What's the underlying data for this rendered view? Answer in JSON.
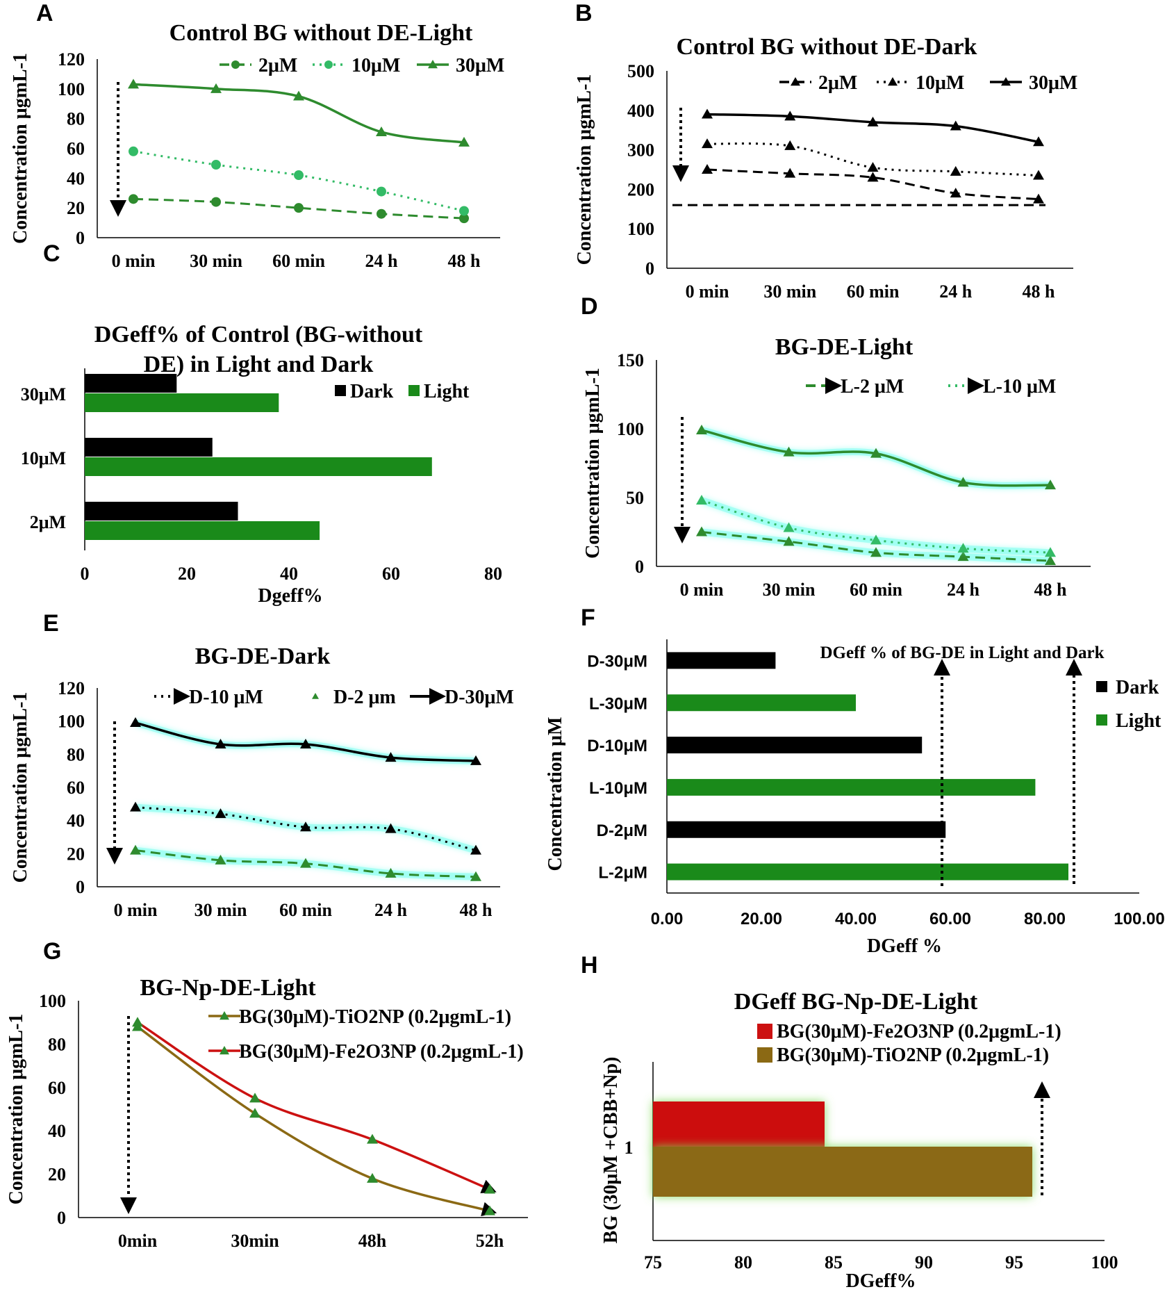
{
  "panels": {
    "A": "A",
    "B": "B",
    "C": "C",
    "D": "D",
    "E": "E",
    "F": "F",
    "G": "G",
    "H": "H"
  },
  "colors": {
    "green": "#2e8b2e",
    "light_green": "#33bb66",
    "dark_green": "#1a7a1a",
    "black": "#000000",
    "red": "#cc1111",
    "olive": "#8b6914",
    "glow": "#7fffee"
  },
  "chart_data": [
    {
      "id": "A",
      "type": "line",
      "title": "Control BG without DE-Light",
      "ylabel": "Concentration μgmL-1",
      "xlabel": "",
      "categories": [
        "0 min",
        "30 min",
        "60 min",
        "24 h",
        "48 h"
      ],
      "ylim": [
        0,
        120
      ],
      "yticks": [
        0,
        20,
        40,
        60,
        80,
        100,
        120
      ],
      "legend_position": "top",
      "series": [
        {
          "name": "2μM",
          "values": [
            26,
            24,
            20,
            16,
            13
          ],
          "style": "dashed",
          "marker": "circle",
          "color": "#2e8b2e"
        },
        {
          "name": "10μM",
          "values": [
            58,
            49,
            42,
            31,
            18
          ],
          "style": "dotted",
          "marker": "circle",
          "color": "#33bb66"
        },
        {
          "name": "30μM",
          "values": [
            103,
            100,
            95,
            71,
            64
          ],
          "style": "solid",
          "marker": "triangle",
          "color": "#2e8b2e"
        }
      ]
    },
    {
      "id": "B",
      "type": "line",
      "title": "Control BG without DE-Dark",
      "ylabel": "Concentration μgmL-1",
      "xlabel": "",
      "categories": [
        "0 min",
        "30 min",
        "60 min",
        "24 h",
        "48 h"
      ],
      "ylim": [
        0,
        500
      ],
      "yticks": [
        0,
        100,
        200,
        300,
        400,
        500
      ],
      "legend_position": "top",
      "series": [
        {
          "name": "2μM",
          "values": [
            250,
            240,
            230,
            190,
            175
          ],
          "style": "dashed",
          "marker": "triangle",
          "color": "#000000"
        },
        {
          "name": "10μM",
          "values": [
            315,
            310,
            255,
            245,
            235
          ],
          "style": "dotted",
          "marker": "triangle",
          "color": "#000000"
        },
        {
          "name": "30μM",
          "values": [
            390,
            385,
            370,
            360,
            320
          ],
          "style": "solid",
          "marker": "triangle",
          "color": "#000000"
        }
      ]
    },
    {
      "id": "C",
      "type": "bar",
      "title": "DGeff% of Control (BG-without DE) in Light and Dark",
      "title_lines": [
        "DGeff% of Control (BG-without",
        "DE) in Light and Dark"
      ],
      "xlabel": "Dgeff%",
      "ylabel": "",
      "categories": [
        "30μM",
        "10μM",
        "2μM"
      ],
      "xlim": [
        0,
        80
      ],
      "xticks": [
        0,
        20,
        40,
        60,
        80
      ],
      "legend_position": "top-right",
      "series": [
        {
          "name": "Dark",
          "values": [
            18,
            25,
            30
          ],
          "color": "#000000"
        },
        {
          "name": "Light",
          "values": [
            38,
            68,
            46
          ],
          "color": "#1a8a1a"
        }
      ]
    },
    {
      "id": "D",
      "type": "line",
      "title": "BG-DE-Light",
      "ylabel": "Concentration μgmL-1",
      "xlabel": "",
      "categories": [
        "0 min",
        "30 min",
        "60 min",
        "24 h",
        "48 h"
      ],
      "ylim": [
        0,
        150
      ],
      "yticks": [
        0,
        50,
        100,
        150
      ],
      "legend_position": "top",
      "series": [
        {
          "name": "L-2 μM",
          "values": [
            25,
            18,
            10,
            7,
            4
          ],
          "style": "dashed",
          "marker": "triangle",
          "color": "#2e8b2e"
        },
        {
          "name": "L-10 μM",
          "values": [
            48,
            28,
            19,
            13,
            10
          ],
          "style": "dotted",
          "marker": "triangle",
          "color": "#33bb66"
        },
        {
          "name": "",
          "values": [
            99,
            83,
            82,
            61,
            59
          ],
          "style": "solid",
          "marker": "triangle",
          "color": "#2e8b2e"
        }
      ]
    },
    {
      "id": "E",
      "type": "line",
      "title": "BG-DE-Dark",
      "ylabel": "Concentration μgmL-1",
      "xlabel": "",
      "categories": [
        "0 min",
        "30 min",
        "60 min",
        "24 h",
        "48 h"
      ],
      "ylim": [
        0,
        120
      ],
      "yticks": [
        0,
        20,
        40,
        60,
        80,
        100,
        120
      ],
      "legend_position": "top",
      "series": [
        {
          "name": "D-10 μM",
          "values": [
            48,
            44,
            36,
            35,
            22
          ],
          "style": "dotted",
          "marker": "triangle",
          "color": "#000000"
        },
        {
          "name": "D-2 μm",
          "values": [
            22,
            16,
            14,
            8,
            6
          ],
          "style": "dashed",
          "marker": "triangle",
          "color": "#2e8b2e"
        },
        {
          "name": "D-30μM",
          "values": [
            99,
            86,
            86,
            78,
            76
          ],
          "style": "solid",
          "marker": "triangle",
          "color": "#000000"
        }
      ]
    },
    {
      "id": "F",
      "type": "bar",
      "title": "DGeff % of BG-DE in Light and Dark",
      "xlabel": "DGeff %",
      "ylabel": "Concentration μM",
      "categories": [
        "D-30μM",
        "L-30μM",
        "D-10μM",
        "L-10μM",
        "D-2μM",
        "L-2μM"
      ],
      "values": [
        23,
        40,
        54,
        78,
        59,
        85
      ],
      "bar_colors": [
        "#000000",
        "#1a8a1a",
        "#000000",
        "#1a8a1a",
        "#000000",
        "#1a8a1a"
      ],
      "xlim": [
        0,
        100
      ],
      "xticks": [
        "0.00",
        "20.00",
        "40.00",
        "60.00",
        "80.00",
        "100.00"
      ],
      "legend_position": "right",
      "legend": [
        {
          "name": "Dark",
          "color": "#000000"
        },
        {
          "name": "Light",
          "color": "#1a8a1a"
        }
      ]
    },
    {
      "id": "G",
      "type": "line",
      "title": "BG-Np-DE-Light",
      "ylabel": "Concentration μgmL-1",
      "xlabel": "",
      "categories": [
        "0min",
        "30min",
        "48h",
        "52h"
      ],
      "ylim": [
        0,
        100
      ],
      "yticks": [
        0,
        20,
        40,
        60,
        80,
        100
      ],
      "legend_position": "top-right",
      "series": [
        {
          "name": "BG(30μM)-TiO2NP (0.2μgmL-1)",
          "values": [
            88,
            48,
            18,
            3
          ],
          "style": "solid",
          "marker": "triangle",
          "color": "#8b6914"
        },
        {
          "name": "BG(30μM)-Fe2O3NP (0.2μgmL-1)",
          "values": [
            90,
            55,
            36,
            13
          ],
          "style": "solid",
          "marker": "triangle",
          "color": "#cc1111"
        }
      ]
    },
    {
      "id": "H",
      "type": "bar",
      "title": "DGeff BG-Np-DE-Light",
      "xlabel": "DGeff%",
      "ylabel": "BG (30μM +CBB+Np)",
      "categories": [
        "1"
      ],
      "xlim": [
        75,
        100
      ],
      "xticks": [
        75,
        80,
        85,
        90,
        95,
        100
      ],
      "legend_position": "top",
      "series": [
        {
          "name": "BG(30μM)-Fe2O3NP (0.2μgmL-1)",
          "values": [
            84.5
          ],
          "color": "#cc1111"
        },
        {
          "name": "BG(30μM)-TiO2NP (0.2μgmL-1)",
          "values": [
            96
          ],
          "color": "#8b6914"
        }
      ]
    }
  ]
}
